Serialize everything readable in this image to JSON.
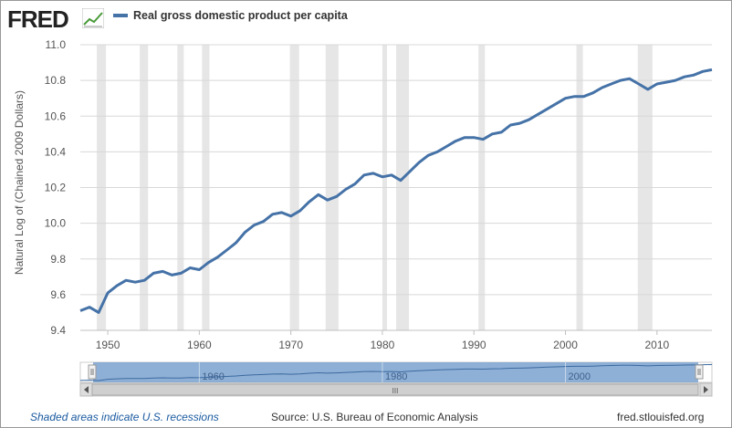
{
  "header": {
    "logo_text": "FRED",
    "legend_label": "Real gross domestic product per capita",
    "series_color": "#4572a7"
  },
  "footer": {
    "recession_note": "Shaded areas indicate U.S. recessions",
    "source": "Source: U.S. Bureau of Economic Analysis",
    "site": "fred.stlouisfed.org"
  },
  "navigator": {
    "tick_labels": [
      "1960",
      "1980",
      "2000"
    ],
    "scroll_grip": "III"
  },
  "chart_data": {
    "type": "line",
    "title": "Real gross domestic product per capita",
    "xlabel": "",
    "ylabel": "Natural Log of (Chained 2009 Dollars)",
    "xlim": [
      1947,
      2016
    ],
    "ylim": [
      9.4,
      11.0
    ],
    "x_ticks": [
      "1950",
      "1960",
      "1970",
      "1980",
      "1990",
      "2000",
      "2010"
    ],
    "y_ticks": [
      "9.4",
      "9.6",
      "9.8",
      "10.0",
      "10.2",
      "10.4",
      "10.6",
      "10.8",
      "11.0"
    ],
    "grid": true,
    "recession_shading_color": "#e6e6e6",
    "recessions": [
      [
        1948.8,
        1949.8
      ],
      [
        1953.5,
        1954.4
      ],
      [
        1957.6,
        1958.3
      ],
      [
        1960.3,
        1961.1
      ],
      [
        1969.9,
        1970.9
      ],
      [
        1973.8,
        1975.2
      ],
      [
        1980.0,
        1980.5
      ],
      [
        1981.5,
        1982.9
      ],
      [
        1990.5,
        1991.2
      ],
      [
        2001.2,
        2001.9
      ],
      [
        2007.9,
        2009.5
      ]
    ],
    "series": [
      {
        "name": "Real gross domestic product per capita",
        "x": [
          1947,
          1948,
          1949,
          1950,
          1951,
          1952,
          1953,
          1954,
          1955,
          1956,
          1957,
          1958,
          1959,
          1960,
          1961,
          1962,
          1963,
          1964,
          1965,
          1966,
          1967,
          1968,
          1969,
          1970,
          1971,
          1972,
          1973,
          1974,
          1975,
          1976,
          1977,
          1978,
          1979,
          1980,
          1981,
          1982,
          1983,
          1984,
          1985,
          1986,
          1987,
          1988,
          1989,
          1990,
          1991,
          1992,
          1993,
          1994,
          1995,
          1996,
          1997,
          1998,
          1999,
          2000,
          2001,
          2002,
          2003,
          2004,
          2005,
          2006,
          2007,
          2008,
          2009,
          2010,
          2011,
          2012,
          2013,
          2014,
          2015,
          2016
        ],
        "values": [
          9.51,
          9.53,
          9.5,
          9.61,
          9.65,
          9.68,
          9.67,
          9.68,
          9.72,
          9.73,
          9.71,
          9.72,
          9.75,
          9.74,
          9.78,
          9.81,
          9.85,
          9.89,
          9.95,
          9.99,
          10.01,
          10.05,
          10.06,
          10.04,
          10.07,
          10.12,
          10.16,
          10.13,
          10.15,
          10.19,
          10.22,
          10.27,
          10.28,
          10.26,
          10.27,
          10.24,
          10.29,
          10.34,
          10.38,
          10.4,
          10.43,
          10.46,
          10.48,
          10.48,
          10.47,
          10.5,
          10.51,
          10.55,
          10.56,
          10.58,
          10.61,
          10.64,
          10.67,
          10.7,
          10.71,
          10.71,
          10.73,
          10.76,
          10.78,
          10.8,
          10.81,
          10.78,
          10.75,
          10.78,
          10.79,
          10.8,
          10.82,
          10.83,
          10.85,
          10.86
        ]
      }
    ]
  }
}
